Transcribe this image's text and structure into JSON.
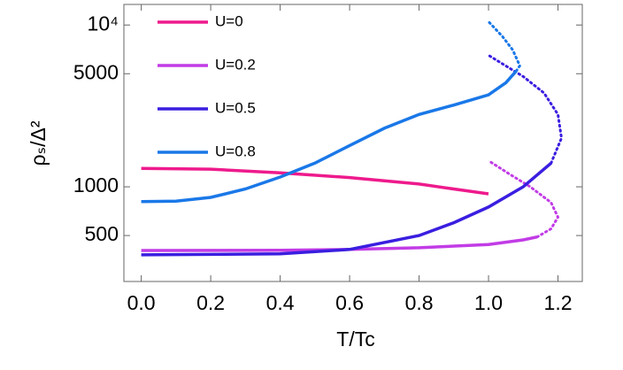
{
  "chart_data": {
    "type": "line",
    "xlabel": "T/Tc",
    "ylabel": "ρₛ/Δ²",
    "xlim": [
      -0.05,
      1.27
    ],
    "xticks": [
      {
        "value": 0,
        "label": "0.0"
      },
      0.2,
      0.4,
      0.6,
      0.8,
      {
        "value": 1,
        "label": "1.0"
      },
      1.2
    ],
    "ylim": [
      260,
      13400
    ],
    "ylog": true,
    "yticks": [
      500,
      1000,
      5000,
      {
        "value": 10000,
        "label": "10⁴"
      }
    ],
    "legend": "upper left",
    "series": [
      {
        "name": "U=0",
        "color": "#ee1a8c",
        "x": [
          0,
          0.2,
          0.4,
          0.6,
          0.8,
          0.9,
          1.0
        ],
        "values": [
          1300,
          1285,
          1220,
          1140,
          1040,
          970,
          905
        ]
      },
      {
        "name": "U=0.2",
        "color": "#c23ce6",
        "x": [
          0,
          0.4,
          0.6,
          0.8,
          1.0,
          1.1,
          1.14
        ],
        "values": [
          404,
          405,
          410,
          420,
          440,
          470,
          490
        ],
        "dotted_x": [
          1.14,
          1.18,
          1.2,
          1.18,
          1.12,
          1.06,
          1.0
        ],
        "dotted_values": [
          490,
          550,
          650,
          800,
          1000,
          1200,
          1450
        ]
      },
      {
        "name": "U=0.5",
        "color": "#3a1ee0",
        "x": [
          0,
          0.4,
          0.6,
          0.8,
          0.9,
          1.0,
          1.1,
          1.18
        ],
        "values": [
          380,
          385,
          410,
          500,
          600,
          750,
          1000,
          1400
        ],
        "dotted_x": [
          1.18,
          1.21,
          1.2,
          1.16,
          1.1,
          1.0
        ],
        "dotted_values": [
          1400,
          2000,
          2800,
          3800,
          4800,
          6500
        ]
      },
      {
        "name": "U=0.8",
        "color": "#1a78e8",
        "x": [
          0,
          0.1,
          0.2,
          0.3,
          0.4,
          0.5,
          0.6,
          0.7,
          0.8,
          0.9,
          1.0,
          1.05,
          1.08
        ],
        "values": [
          810,
          815,
          860,
          970,
          1150,
          1400,
          1800,
          2300,
          2800,
          3200,
          3700,
          4400,
          5200
        ],
        "dotted_x": [
          1.08,
          1.09,
          1.07,
          1.04,
          1.0
        ],
        "dotted_values": [
          5200,
          5600,
          7000,
          8500,
          10500
        ]
      }
    ]
  }
}
